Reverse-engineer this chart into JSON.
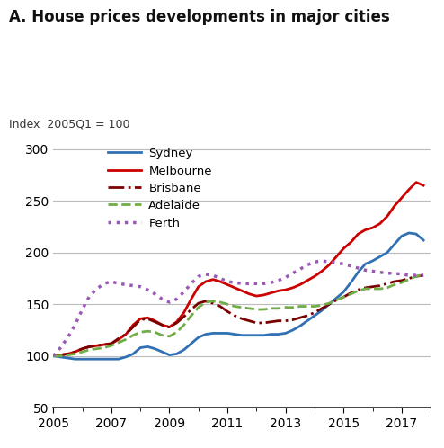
{
  "title": "A. House prices developments in major cities",
  "ylabel": "Index  2005Q1 = 100",
  "ylim": [
    50,
    310
  ],
  "yticks": [
    50,
    100,
    150,
    200,
    250,
    300
  ],
  "xlim": [
    2005.0,
    2018.0
  ],
  "xticks": [
    2005,
    2007,
    2009,
    2011,
    2013,
    2015,
    2017
  ],
  "series": {
    "Sydney": {
      "color": "#3070b3",
      "linestyle": "solid",
      "linewidth": 2.0,
      "data": [
        [
          2005.0,
          100
        ],
        [
          2005.25,
          99
        ],
        [
          2005.5,
          98
        ],
        [
          2005.75,
          97
        ],
        [
          2006.0,
          97
        ],
        [
          2006.25,
          97
        ],
        [
          2006.5,
          97
        ],
        [
          2006.75,
          97
        ],
        [
          2007.0,
          97
        ],
        [
          2007.25,
          97
        ],
        [
          2007.5,
          99
        ],
        [
          2007.75,
          102
        ],
        [
          2008.0,
          108
        ],
        [
          2008.25,
          109
        ],
        [
          2008.5,
          107
        ],
        [
          2008.75,
          104
        ],
        [
          2009.0,
          101
        ],
        [
          2009.25,
          102
        ],
        [
          2009.5,
          106
        ],
        [
          2009.75,
          112
        ],
        [
          2010.0,
          118
        ],
        [
          2010.25,
          121
        ],
        [
          2010.5,
          122
        ],
        [
          2010.75,
          122
        ],
        [
          2011.0,
          122
        ],
        [
          2011.25,
          121
        ],
        [
          2011.5,
          120
        ],
        [
          2011.75,
          120
        ],
        [
          2012.0,
          120
        ],
        [
          2012.25,
          120
        ],
        [
          2012.5,
          121
        ],
        [
          2012.75,
          121
        ],
        [
          2013.0,
          122
        ],
        [
          2013.25,
          125
        ],
        [
          2013.5,
          129
        ],
        [
          2013.75,
          134
        ],
        [
          2014.0,
          139
        ],
        [
          2014.25,
          144
        ],
        [
          2014.5,
          150
        ],
        [
          2014.75,
          156
        ],
        [
          2015.0,
          162
        ],
        [
          2015.25,
          171
        ],
        [
          2015.5,
          181
        ],
        [
          2015.75,
          189
        ],
        [
          2016.0,
          192
        ],
        [
          2016.25,
          196
        ],
        [
          2016.5,
          200
        ],
        [
          2016.75,
          208
        ],
        [
          2017.0,
          216
        ],
        [
          2017.25,
          219
        ],
        [
          2017.5,
          218
        ],
        [
          2017.75,
          212
        ]
      ]
    },
    "Melbourne": {
      "color": "#cc0000",
      "linestyle": "solid",
      "linewidth": 2.0,
      "data": [
        [
          2005.0,
          100
        ],
        [
          2005.25,
          101
        ],
        [
          2005.5,
          102
        ],
        [
          2005.75,
          104
        ],
        [
          2006.0,
          107
        ],
        [
          2006.25,
          109
        ],
        [
          2006.5,
          110
        ],
        [
          2006.75,
          111
        ],
        [
          2007.0,
          112
        ],
        [
          2007.25,
          116
        ],
        [
          2007.5,
          121
        ],
        [
          2007.75,
          130
        ],
        [
          2008.0,
          136
        ],
        [
          2008.25,
          137
        ],
        [
          2008.5,
          134
        ],
        [
          2008.75,
          130
        ],
        [
          2009.0,
          128
        ],
        [
          2009.25,
          133
        ],
        [
          2009.5,
          142
        ],
        [
          2009.75,
          155
        ],
        [
          2010.0,
          167
        ],
        [
          2010.25,
          172
        ],
        [
          2010.5,
          174
        ],
        [
          2010.75,
          172
        ],
        [
          2011.0,
          169
        ],
        [
          2011.25,
          166
        ],
        [
          2011.5,
          163
        ],
        [
          2011.75,
          160
        ],
        [
          2012.0,
          158
        ],
        [
          2012.25,
          159
        ],
        [
          2012.5,
          161
        ],
        [
          2012.75,
          163
        ],
        [
          2013.0,
          164
        ],
        [
          2013.25,
          166
        ],
        [
          2013.5,
          169
        ],
        [
          2013.75,
          173
        ],
        [
          2014.0,
          177
        ],
        [
          2014.25,
          182
        ],
        [
          2014.5,
          188
        ],
        [
          2014.75,
          196
        ],
        [
          2015.0,
          204
        ],
        [
          2015.25,
          210
        ],
        [
          2015.5,
          218
        ],
        [
          2015.75,
          222
        ],
        [
          2016.0,
          224
        ],
        [
          2016.25,
          228
        ],
        [
          2016.5,
          235
        ],
        [
          2016.75,
          245
        ],
        [
          2017.0,
          253
        ],
        [
          2017.25,
          261
        ],
        [
          2017.5,
          268
        ],
        [
          2017.75,
          265
        ]
      ]
    },
    "Brisbane": {
      "color": "#7b0000",
      "linestyle": "dashdot",
      "linewidth": 2.0,
      "data": [
        [
          2005.0,
          100
        ],
        [
          2005.25,
          101
        ],
        [
          2005.5,
          102
        ],
        [
          2005.75,
          104
        ],
        [
          2006.0,
          107
        ],
        [
          2006.25,
          109
        ],
        [
          2006.5,
          110
        ],
        [
          2006.75,
          111
        ],
        [
          2007.0,
          112
        ],
        [
          2007.25,
          117
        ],
        [
          2007.5,
          121
        ],
        [
          2007.75,
          128
        ],
        [
          2008.0,
          135
        ],
        [
          2008.25,
          136
        ],
        [
          2008.5,
          133
        ],
        [
          2008.75,
          130
        ],
        [
          2009.0,
          128
        ],
        [
          2009.25,
          132
        ],
        [
          2009.5,
          138
        ],
        [
          2009.75,
          145
        ],
        [
          2010.0,
          151
        ],
        [
          2010.25,
          153
        ],
        [
          2010.5,
          151
        ],
        [
          2010.75,
          148
        ],
        [
          2011.0,
          143
        ],
        [
          2011.25,
          139
        ],
        [
          2011.5,
          136
        ],
        [
          2011.75,
          134
        ],
        [
          2012.0,
          132
        ],
        [
          2012.25,
          132
        ],
        [
          2012.5,
          133
        ],
        [
          2012.75,
          134
        ],
        [
          2013.0,
          134
        ],
        [
          2013.25,
          135
        ],
        [
          2013.5,
          137
        ],
        [
          2013.75,
          139
        ],
        [
          2014.0,
          142
        ],
        [
          2014.25,
          146
        ],
        [
          2014.5,
          150
        ],
        [
          2014.75,
          154
        ],
        [
          2015.0,
          157
        ],
        [
          2015.25,
          161
        ],
        [
          2015.5,
          164
        ],
        [
          2015.75,
          166
        ],
        [
          2016.0,
          167
        ],
        [
          2016.25,
          168
        ],
        [
          2016.5,
          170
        ],
        [
          2016.75,
          172
        ],
        [
          2017.0,
          173
        ],
        [
          2017.25,
          175
        ],
        [
          2017.5,
          177
        ],
        [
          2017.75,
          178
        ]
      ]
    },
    "Adelaide": {
      "color": "#70ad47",
      "linestyle": "dashed",
      "linewidth": 2.0,
      "data": [
        [
          2005.0,
          100
        ],
        [
          2005.25,
          100
        ],
        [
          2005.5,
          101
        ],
        [
          2005.75,
          102
        ],
        [
          2006.0,
          104
        ],
        [
          2006.25,
          106
        ],
        [
          2006.5,
          107
        ],
        [
          2006.75,
          108
        ],
        [
          2007.0,
          110
        ],
        [
          2007.25,
          113
        ],
        [
          2007.5,
          116
        ],
        [
          2007.75,
          120
        ],
        [
          2008.0,
          123
        ],
        [
          2008.25,
          124
        ],
        [
          2008.5,
          123
        ],
        [
          2008.75,
          120
        ],
        [
          2009.0,
          119
        ],
        [
          2009.25,
          123
        ],
        [
          2009.5,
          130
        ],
        [
          2009.75,
          139
        ],
        [
          2010.0,
          147
        ],
        [
          2010.25,
          152
        ],
        [
          2010.5,
          153
        ],
        [
          2010.75,
          152
        ],
        [
          2011.0,
          150
        ],
        [
          2011.25,
          148
        ],
        [
          2011.5,
          147
        ],
        [
          2011.75,
          146
        ],
        [
          2012.0,
          145
        ],
        [
          2012.25,
          145
        ],
        [
          2012.5,
          146
        ],
        [
          2012.75,
          146
        ],
        [
          2013.0,
          147
        ],
        [
          2013.25,
          147
        ],
        [
          2013.5,
          148
        ],
        [
          2013.75,
          148
        ],
        [
          2014.0,
          148
        ],
        [
          2014.25,
          149
        ],
        [
          2014.5,
          151
        ],
        [
          2014.75,
          154
        ],
        [
          2015.0,
          157
        ],
        [
          2015.25,
          160
        ],
        [
          2015.5,
          163
        ],
        [
          2015.75,
          165
        ],
        [
          2016.0,
          165
        ],
        [
          2016.25,
          165
        ],
        [
          2016.5,
          166
        ],
        [
          2016.75,
          169
        ],
        [
          2017.0,
          171
        ],
        [
          2017.25,
          174
        ],
        [
          2017.5,
          177
        ],
        [
          2017.75,
          179
        ]
      ]
    },
    "Perth": {
      "color": "#9b59b6",
      "linestyle": "dotted",
      "linewidth": 2.5,
      "data": [
        [
          2005.0,
          100
        ],
        [
          2005.25,
          108
        ],
        [
          2005.5,
          118
        ],
        [
          2005.75,
          130
        ],
        [
          2006.0,
          145
        ],
        [
          2006.25,
          158
        ],
        [
          2006.5,
          165
        ],
        [
          2006.75,
          170
        ],
        [
          2007.0,
          172
        ],
        [
          2007.25,
          170
        ],
        [
          2007.5,
          169
        ],
        [
          2007.75,
          168
        ],
        [
          2008.0,
          167
        ],
        [
          2008.25,
          164
        ],
        [
          2008.5,
          160
        ],
        [
          2008.75,
          155
        ],
        [
          2009.0,
          152
        ],
        [
          2009.25,
          155
        ],
        [
          2009.5,
          162
        ],
        [
          2009.75,
          170
        ],
        [
          2010.0,
          177
        ],
        [
          2010.25,
          179
        ],
        [
          2010.5,
          178
        ],
        [
          2010.75,
          175
        ],
        [
          2011.0,
          172
        ],
        [
          2011.25,
          171
        ],
        [
          2011.5,
          170
        ],
        [
          2011.75,
          170
        ],
        [
          2012.0,
          170
        ],
        [
          2012.25,
          170
        ],
        [
          2012.5,
          171
        ],
        [
          2012.75,
          173
        ],
        [
          2013.0,
          176
        ],
        [
          2013.25,
          180
        ],
        [
          2013.5,
          184
        ],
        [
          2013.75,
          188
        ],
        [
          2014.0,
          191
        ],
        [
          2014.25,
          192
        ],
        [
          2014.5,
          191
        ],
        [
          2014.75,
          190
        ],
        [
          2015.0,
          189
        ],
        [
          2015.25,
          187
        ],
        [
          2015.5,
          185
        ],
        [
          2015.75,
          183
        ],
        [
          2016.0,
          182
        ],
        [
          2016.25,
          181
        ],
        [
          2016.5,
          180
        ],
        [
          2016.75,
          180
        ],
        [
          2017.0,
          179
        ],
        [
          2017.25,
          178
        ],
        [
          2017.5,
          178
        ],
        [
          2017.75,
          178
        ]
      ]
    }
  },
  "legend_order": [
    "Sydney",
    "Melbourne",
    "Brisbane",
    "Adelaide",
    "Perth"
  ],
  "background_color": "#ffffff",
  "grid_color": "#bbbbbb"
}
